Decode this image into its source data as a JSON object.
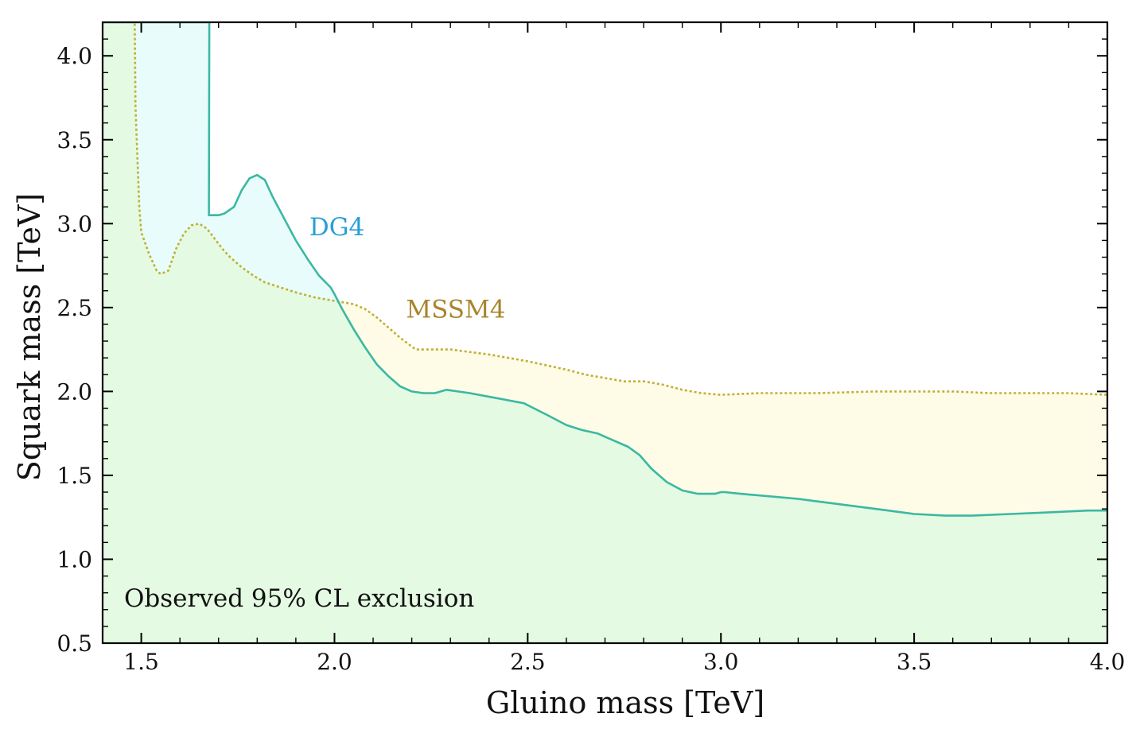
{
  "chart_data": {
    "type": "area",
    "title": "",
    "xlabel": "Gluino mass [TeV]",
    "ylabel": "Squark mass [TeV]",
    "xlim": [
      1.4,
      4.0
    ],
    "ylim": [
      0.5,
      4.2
    ],
    "xticks": [
      1.5,
      2.0,
      2.5,
      3.0,
      3.5,
      4.0
    ],
    "xtick_labels": [
      "1.5",
      "2.0",
      "2.5",
      "3.0",
      "3.5",
      "4.0"
    ],
    "yticks": [
      0.5,
      1.0,
      1.5,
      2.0,
      2.5,
      3.0,
      3.5,
      4.0
    ],
    "ytick_labels": [
      "0.5",
      "1.0",
      "1.5",
      "2.0",
      "2.5",
      "3.0",
      "3.5",
      "4.0"
    ],
    "grid": false,
    "annotation": "Observed 95% CL exclusion",
    "series": [
      {
        "name": "DG4",
        "style": "solid",
        "color": "#3bb8a3",
        "fill": "#e8fdfb",
        "label_color": "#2a9fd6",
        "label_at": [
          1.935,
          2.93
        ],
        "x": [
          1.4,
          1.4,
          1.676,
          1.675,
          1.685,
          1.7,
          1.715,
          1.74,
          1.76,
          1.78,
          1.8,
          1.82,
          1.84,
          1.87,
          1.9,
          1.93,
          1.96,
          1.99,
          2.0,
          2.02,
          2.05,
          2.08,
          2.11,
          2.14,
          2.17,
          2.2,
          2.23,
          2.26,
          2.29,
          2.35,
          2.42,
          2.49,
          2.55,
          2.6,
          2.64,
          2.68,
          2.72,
          2.76,
          2.79,
          2.82,
          2.86,
          2.9,
          2.94,
          2.97,
          2.985,
          3.0,
          3.01,
          3.05,
          3.1,
          3.2,
          3.3,
          3.4,
          3.5,
          3.58,
          3.65,
          3.75,
          3.85,
          3.95,
          4.0,
          4.0
        ],
        "y": [
          0.5,
          4.2,
          4.2,
          3.05,
          3.05,
          3.05,
          3.06,
          3.1,
          3.2,
          3.27,
          3.29,
          3.26,
          3.16,
          3.03,
          2.9,
          2.79,
          2.69,
          2.62,
          2.58,
          2.49,
          2.37,
          2.26,
          2.16,
          2.09,
          2.03,
          2.0,
          1.99,
          1.99,
          2.01,
          1.99,
          1.96,
          1.93,
          1.86,
          1.8,
          1.77,
          1.75,
          1.71,
          1.67,
          1.62,
          1.54,
          1.46,
          1.41,
          1.39,
          1.39,
          1.39,
          1.4,
          1.4,
          1.39,
          1.38,
          1.36,
          1.33,
          1.3,
          1.27,
          1.26,
          1.26,
          1.27,
          1.28,
          1.29,
          1.29,
          0.5
        ]
      },
      {
        "name": "MSSM4",
        "style": "dotted",
        "color": "#c0b034",
        "fill": "#fefbe6",
        "label_color": "#a8852a",
        "label_at": [
          2.185,
          2.44
        ],
        "x": [
          1.4,
          1.4,
          1.483,
          1.484,
          1.485,
          1.49,
          1.495,
          1.5,
          1.52,
          1.54,
          1.55,
          1.57,
          1.59,
          1.61,
          1.63,
          1.65,
          1.67,
          1.69,
          1.71,
          1.73,
          1.76,
          1.79,
          1.82,
          1.86,
          1.9,
          1.95,
          2.0,
          2.05,
          2.08,
          2.11,
          2.14,
          2.17,
          2.21,
          2.25,
          2.3,
          2.4,
          2.5,
          2.6,
          2.65,
          2.7,
          2.75,
          2.8,
          2.85,
          2.9,
          2.95,
          3.0,
          3.1,
          3.25,
          3.4,
          3.5,
          3.6,
          3.7,
          3.8,
          3.9,
          4.0,
          4.0
        ],
        "y": [
          0.5,
          4.2,
          4.2,
          4.0,
          3.7,
          3.4,
          3.1,
          2.95,
          2.82,
          2.72,
          2.7,
          2.72,
          2.85,
          2.94,
          2.99,
          3.0,
          2.97,
          2.91,
          2.85,
          2.8,
          2.74,
          2.69,
          2.65,
          2.62,
          2.59,
          2.56,
          2.54,
          2.52,
          2.49,
          2.44,
          2.38,
          2.32,
          2.25,
          2.25,
          2.25,
          2.22,
          2.18,
          2.13,
          2.1,
          2.08,
          2.06,
          2.06,
          2.04,
          2.01,
          1.99,
          1.98,
          1.99,
          1.99,
          2.0,
          2.0,
          2.0,
          1.99,
          1.99,
          1.99,
          1.98,
          0.5
        ]
      }
    ]
  }
}
